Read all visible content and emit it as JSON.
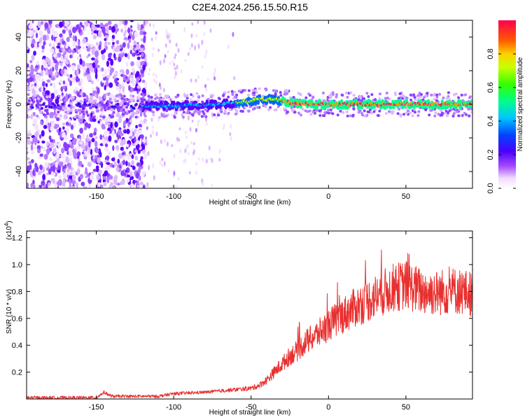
{
  "title": "C2E4.2024.256.15.50.R15",
  "chart_data": [
    {
      "type": "heatmap",
      "xlabel": "Height of straight line (km)",
      "ylabel": "Frequency (Hz)",
      "xlim": [
        -195,
        93
      ],
      "ylim": [
        -50,
        50
      ],
      "xticks": [
        -150,
        -100,
        -50,
        0,
        50
      ],
      "yticks": [
        -40,
        -20,
        0,
        20,
        40
      ],
      "ridge": {
        "x": [
          -120,
          -110,
          -100,
          -90,
          -80,
          -70,
          -60,
          -50,
          -45,
          -40,
          -35,
          -30,
          -25,
          -20,
          -10,
          0,
          10,
          20,
          30,
          40,
          50,
          60,
          70,
          80,
          90
        ],
        "freq": [
          -1,
          -1,
          -1,
          -0.5,
          -0.5,
          0,
          1,
          2,
          3,
          3,
          3,
          2,
          1,
          0.5,
          0,
          0,
          0,
          0,
          0,
          0,
          0,
          0,
          0,
          0,
          0
        ]
      },
      "colorbar": {
        "label": "Normalized spectral amplitude",
        "range": [
          0.0,
          1.0
        ],
        "ticks": [
          "0.0",
          "0.2",
          "0.4",
          "0.6",
          "0.8"
        ]
      }
    },
    {
      "type": "line",
      "xlabel": "Height of straight line (km)",
      "ylabel": "SNR (10 * v/v)",
      "y_multiplier": "(x10",
      "y_multiplier_exp": "4",
      "y_multiplier_close": ")",
      "xlim": [
        -195,
        93
      ],
      "ylim": [
        0,
        1.25
      ],
      "xticks": [
        -150,
        -100,
        -50,
        0,
        50
      ],
      "yticks": [
        0.2,
        0.4,
        0.6,
        0.8,
        1.0,
        1.2
      ],
      "series": [
        {
          "color": "#e8302f",
          "x": [
            -195,
            -150,
            -145,
            -140,
            -110,
            -100,
            -80,
            -60,
            -50,
            -45,
            -40,
            -35,
            -30,
            -25,
            -20,
            -15,
            -10,
            -5,
            0,
            10,
            20,
            30,
            40,
            50,
            60,
            70,
            80,
            93
          ],
          "y": [
            0.01,
            0.01,
            0.05,
            0.02,
            0.02,
            0.04,
            0.05,
            0.07,
            0.08,
            0.1,
            0.14,
            0.2,
            0.26,
            0.32,
            0.36,
            0.42,
            0.46,
            0.5,
            0.55,
            0.63,
            0.7,
            0.76,
            0.82,
            0.85,
            0.8,
            0.79,
            0.81,
            0.78
          ]
        }
      ]
    }
  ]
}
